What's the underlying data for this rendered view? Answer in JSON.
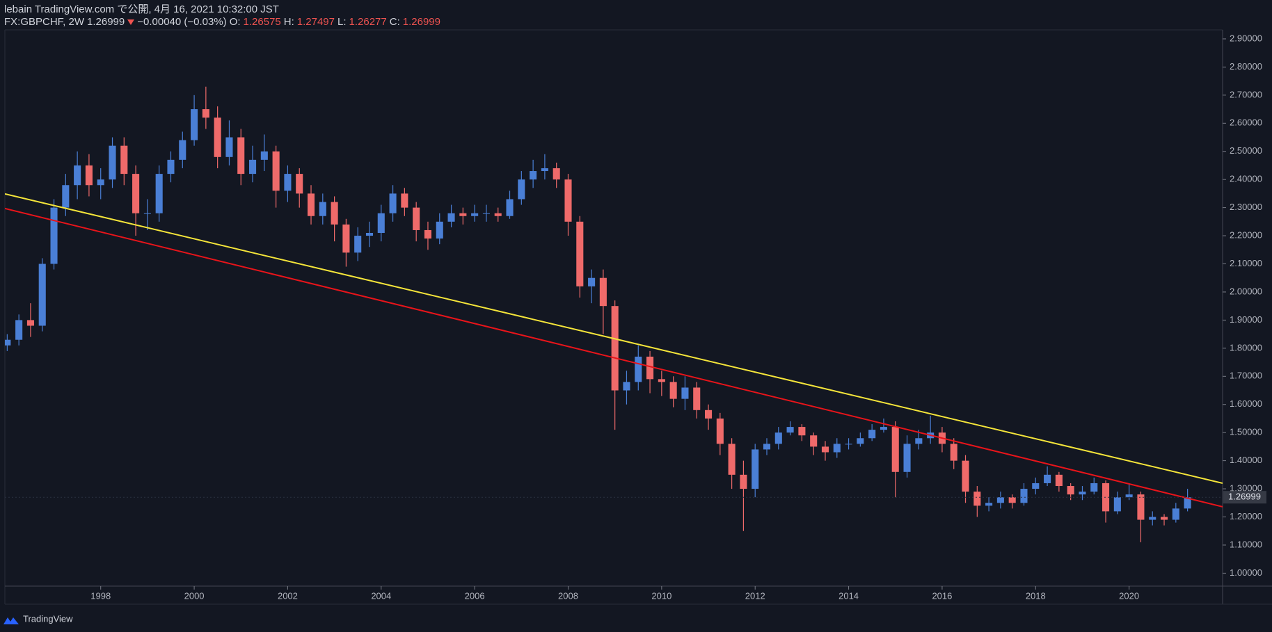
{
  "header": {
    "publisher": "lebain TradingView.com で公開, 4月 16, 2021 10:32:00 JST",
    "symbol": "FX:GBPCHF, 2W",
    "price": "1.26999",
    "change": "−0.00040 (−0.03%)",
    "ohlc": [
      {
        "label": "O:",
        "value": "1.26575"
      },
      {
        "label": "H:",
        "value": "1.27497"
      },
      {
        "label": "L:",
        "value": "1.26277"
      },
      {
        "label": "C:",
        "value": "1.26999"
      }
    ]
  },
  "footer": {
    "brand": "TradingView"
  },
  "chart_data": {
    "type": "candlestick",
    "up_color": "#4a7fd6",
    "down_color": "#ef6a6a",
    "xlim": [
      1995.95,
      2022.0
    ],
    "ylim": [
      0.954,
      2.932
    ],
    "xticks": [
      1998,
      2000,
      2002,
      2004,
      2006,
      2008,
      2010,
      2012,
      2014,
      2016,
      2018,
      2020
    ],
    "yticks": [
      {
        "value": 1.0,
        "label": "1.00000"
      },
      {
        "value": 1.1,
        "label": "1.10000"
      },
      {
        "value": 1.2,
        "label": "1.20000"
      },
      {
        "value": 1.3,
        "label": "1.30000"
      },
      {
        "value": 1.4,
        "label": "1.40000"
      },
      {
        "value": 1.5,
        "label": "1.50000"
      },
      {
        "value": 1.6,
        "label": "1.60000"
      },
      {
        "value": 1.7,
        "label": "1.70000"
      },
      {
        "value": 1.8,
        "label": "1.80000"
      },
      {
        "value": 1.9,
        "label": "1.90000"
      },
      {
        "value": 2.0,
        "label": "2.00000"
      },
      {
        "value": 2.1,
        "label": "2.10000"
      },
      {
        "value": 2.2,
        "label": "2.20000"
      },
      {
        "value": 2.3,
        "label": "2.30000"
      },
      {
        "value": 2.4,
        "label": "2.40000"
      },
      {
        "value": 2.5,
        "label": "2.50000"
      },
      {
        "value": 2.6,
        "label": "2.60000"
      },
      {
        "value": 2.7,
        "label": "2.70000"
      },
      {
        "value": 2.8,
        "label": "2.80000"
      },
      {
        "value": 2.9,
        "label": "2.90000"
      }
    ],
    "last_price": {
      "value": 1.26999,
      "label": "1.26999"
    },
    "trendlines": [
      {
        "color": "#f5e53a",
        "points": [
          [
            1995.95,
            2.349
          ],
          [
            2022.0,
            1.32
          ]
        ]
      },
      {
        "color": "#e8141a",
        "points": [
          [
            1995.95,
            2.297
          ],
          [
            2022.0,
            1.236
          ]
        ]
      }
    ],
    "x": [
      1996.0,
      1996.25,
      1996.5,
      1996.75,
      1997.0,
      1997.25,
      1997.5,
      1997.75,
      1998.0,
      1998.25,
      1998.5,
      1998.75,
      1999.0,
      1999.25,
      1999.5,
      1999.75,
      2000.0,
      2000.25,
      2000.5,
      2000.75,
      2001.0,
      2001.25,
      2001.5,
      2001.75,
      2002.0,
      2002.25,
      2002.5,
      2002.75,
      2003.0,
      2003.25,
      2003.5,
      2003.75,
      2004.0,
      2004.25,
      2004.5,
      2004.75,
      2005.0,
      2005.25,
      2005.5,
      2005.75,
      2006.0,
      2006.25,
      2006.5,
      2006.75,
      2007.0,
      2007.25,
      2007.5,
      2007.75,
      2008.0,
      2008.25,
      2008.5,
      2008.75,
      2009.0,
      2009.25,
      2009.5,
      2009.75,
      2010.0,
      2010.25,
      2010.5,
      2010.75,
      2011.0,
      2011.25,
      2011.5,
      2011.75,
      2012.0,
      2012.25,
      2012.5,
      2012.75,
      2013.0,
      2013.25,
      2013.5,
      2013.75,
      2014.0,
      2014.25,
      2014.5,
      2014.75,
      2015.0,
      2015.25,
      2015.5,
      2015.75,
      2016.0,
      2016.25,
      2016.5,
      2016.75,
      2017.0,
      2017.25,
      2017.5,
      2017.75,
      2018.0,
      2018.25,
      2018.5,
      2018.75,
      2019.0,
      2019.25,
      2019.5,
      2019.75,
      2020.0,
      2020.25,
      2020.5,
      2020.75,
      2021.0,
      2021.25
    ],
    "open": [
      1.81,
      1.83,
      1.9,
      1.88,
      2.1,
      2.3,
      2.38,
      2.45,
      2.38,
      2.4,
      2.52,
      2.42,
      2.28,
      2.28,
      2.42,
      2.47,
      2.54,
      2.65,
      2.62,
      2.48,
      2.55,
      2.42,
      2.47,
      2.5,
      2.36,
      2.42,
      2.35,
      2.27,
      2.32,
      2.24,
      2.14,
      2.2,
      2.21,
      2.28,
      2.35,
      2.3,
      2.22,
      2.19,
      2.25,
      2.28,
      2.27,
      2.28,
      2.28,
      2.27,
      2.33,
      2.4,
      2.43,
      2.44,
      2.4,
      2.25,
      2.02,
      2.05,
      1.95,
      1.65,
      1.68,
      1.77,
      1.69,
      1.68,
      1.62,
      1.66,
      1.58,
      1.55,
      1.46,
      1.35,
      1.3,
      1.44,
      1.46,
      1.5,
      1.52,
      1.49,
      1.45,
      1.43,
      1.46,
      1.46,
      1.48,
      1.51,
      1.52,
      1.36,
      1.46,
      1.48,
      1.5,
      1.46,
      1.4,
      1.29,
      1.24,
      1.25,
      1.27,
      1.25,
      1.3,
      1.32,
      1.35,
      1.31,
      1.28,
      1.29,
      1.32,
      1.22,
      1.27,
      1.28,
      1.19,
      1.2,
      1.19,
      1.23
    ],
    "high": [
      1.85,
      1.92,
      1.96,
      2.12,
      2.33,
      2.42,
      2.5,
      2.49,
      2.44,
      2.55,
      2.55,
      2.45,
      2.33,
      2.45,
      2.5,
      2.57,
      2.7,
      2.73,
      2.66,
      2.61,
      2.58,
      2.52,
      2.56,
      2.52,
      2.45,
      2.44,
      2.38,
      2.35,
      2.34,
      2.26,
      2.23,
      2.25,
      2.31,
      2.38,
      2.37,
      2.32,
      2.25,
      2.28,
      2.31,
      2.3,
      2.31,
      2.31,
      2.3,
      2.36,
      2.43,
      2.47,
      2.49,
      2.46,
      2.42,
      2.27,
      2.08,
      2.08,
      1.97,
      1.72,
      1.81,
      1.79,
      1.72,
      1.7,
      1.7,
      1.68,
      1.6,
      1.57,
      1.48,
      1.4,
      1.46,
      1.48,
      1.52,
      1.54,
      1.53,
      1.5,
      1.47,
      1.48,
      1.48,
      1.5,
      1.53,
      1.55,
      1.54,
      1.49,
      1.51,
      1.56,
      1.52,
      1.48,
      1.42,
      1.31,
      1.27,
      1.29,
      1.28,
      1.32,
      1.34,
      1.38,
      1.36,
      1.32,
      1.31,
      1.34,
      1.33,
      1.29,
      1.32,
      1.29,
      1.22,
      1.21,
      1.25,
      1.3
    ],
    "low": [
      1.79,
      1.81,
      1.84,
      1.86,
      2.08,
      2.27,
      2.33,
      2.34,
      2.33,
      2.37,
      2.38,
      2.2,
      2.22,
      2.25,
      2.39,
      2.44,
      2.52,
      2.58,
      2.44,
      2.45,
      2.38,
      2.39,
      2.43,
      2.3,
      2.32,
      2.3,
      2.24,
      2.24,
      2.18,
      2.09,
      2.11,
      2.16,
      2.18,
      2.25,
      2.27,
      2.18,
      2.15,
      2.17,
      2.23,
      2.24,
      2.25,
      2.25,
      2.25,
      2.26,
      2.31,
      2.37,
      2.4,
      2.37,
      2.2,
      1.98,
      1.96,
      1.85,
      1.51,
      1.6,
      1.65,
      1.64,
      1.63,
      1.59,
      1.58,
      1.55,
      1.51,
      1.42,
      1.3,
      1.15,
      1.27,
      1.42,
      1.44,
      1.49,
      1.47,
      1.42,
      1.4,
      1.41,
      1.44,
      1.45,
      1.47,
      1.5,
      1.27,
      1.34,
      1.44,
      1.46,
      1.43,
      1.37,
      1.25,
      1.2,
      1.22,
      1.23,
      1.23,
      1.24,
      1.28,
      1.31,
      1.29,
      1.26,
      1.26,
      1.28,
      1.18,
      1.21,
      1.26,
      1.11,
      1.17,
      1.17,
      1.18,
      1.22
    ],
    "close": [
      1.83,
      1.9,
      1.88,
      2.1,
      2.3,
      2.38,
      2.45,
      2.38,
      2.4,
      2.52,
      2.42,
      2.28,
      2.28,
      2.42,
      2.47,
      2.54,
      2.65,
      2.62,
      2.48,
      2.55,
      2.42,
      2.47,
      2.5,
      2.36,
      2.42,
      2.35,
      2.27,
      2.32,
      2.24,
      2.14,
      2.2,
      2.21,
      2.28,
      2.35,
      2.3,
      2.22,
      2.19,
      2.25,
      2.28,
      2.27,
      2.28,
      2.28,
      2.27,
      2.33,
      2.4,
      2.43,
      2.44,
      2.4,
      2.25,
      2.02,
      2.05,
      1.95,
      1.65,
      1.68,
      1.77,
      1.69,
      1.68,
      1.62,
      1.66,
      1.58,
      1.55,
      1.46,
      1.35,
      1.3,
      1.44,
      1.46,
      1.5,
      1.52,
      1.49,
      1.45,
      1.43,
      1.46,
      1.46,
      1.48,
      1.51,
      1.52,
      1.36,
      1.46,
      1.48,
      1.5,
      1.46,
      1.4,
      1.29,
      1.24,
      1.25,
      1.27,
      1.25,
      1.3,
      1.32,
      1.35,
      1.31,
      1.28,
      1.29,
      1.32,
      1.22,
      1.27,
      1.28,
      1.19,
      1.2,
      1.19,
      1.23,
      1.27
    ]
  }
}
